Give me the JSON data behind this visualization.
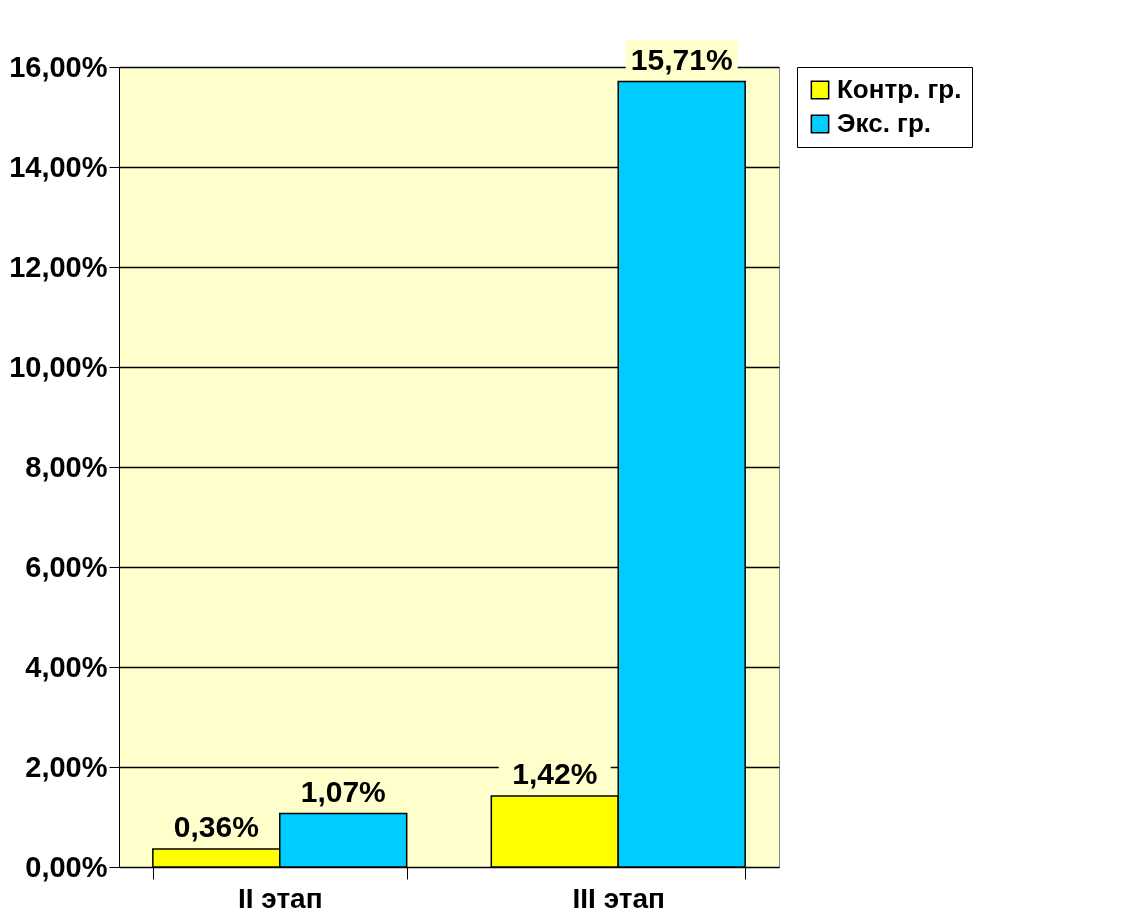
{
  "chart_data": {
    "type": "bar",
    "categories": [
      "II этап",
      "III этап"
    ],
    "series": [
      {
        "name": "Контр. гр.",
        "color": "#ffff00",
        "values": [
          0.36,
          1.42
        ],
        "value_labels": [
          "0,36%",
          "1,42%"
        ]
      },
      {
        "name": "Экс. гр.",
        "color": "#00ccff",
        "values": [
          1.07,
          15.71
        ],
        "value_labels": [
          "1,07%",
          "15,71%"
        ]
      }
    ],
    "ylim": [
      0,
      16
    ],
    "yticks": [
      {
        "value": 0,
        "label": "0,00%"
      },
      {
        "value": 2,
        "label": "2,00%"
      },
      {
        "value": 4,
        "label": "4,00%"
      },
      {
        "value": 6,
        "label": "6,00%"
      },
      {
        "value": 8,
        "label": "8,00%"
      },
      {
        "value": 10,
        "label": "10,00%"
      },
      {
        "value": 12,
        "label": "12,00%"
      },
      {
        "value": 14,
        "label": "14,00%"
      },
      {
        "value": 16,
        "label": "16,00%"
      }
    ],
    "grid": "y",
    "legend": "right"
  }
}
